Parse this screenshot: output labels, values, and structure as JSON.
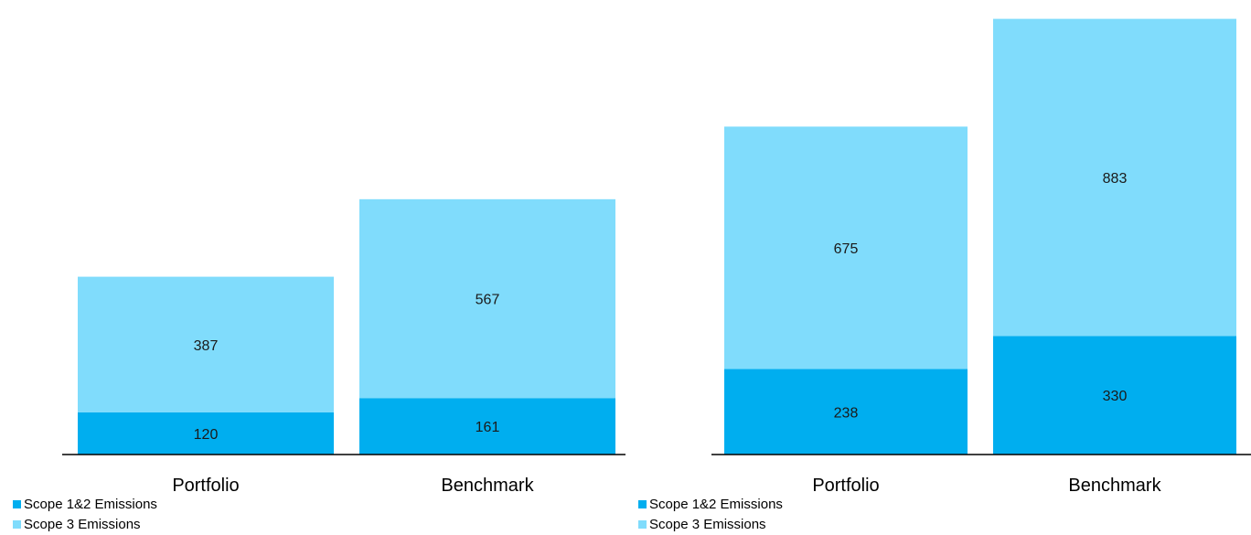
{
  "colors": {
    "scope12": "#00aeef",
    "scope3": "#80dcfc",
    "axis": "#000000"
  },
  "chart_data": [
    {
      "type": "bar",
      "stacked": true,
      "categories": [
        "Portfolio",
        "Benchmark"
      ],
      "series": [
        {
          "name": "Scope 1&2 Emissions",
          "values": [
            120,
            161
          ]
        },
        {
          "name": "Scope 3 Emissions",
          "values": [
            387,
            567
          ]
        }
      ],
      "ylim": [
        0,
        1270
      ],
      "grid": false,
      "legend": "bottom-left",
      "legend_items": [
        "Scope 1&2 Emissions",
        "Scope 3 Emissions"
      ]
    },
    {
      "type": "bar",
      "stacked": true,
      "categories": [
        "Portfolio",
        "Benchmark"
      ],
      "series": [
        {
          "name": "Scope 1&2 Emissions",
          "values": [
            238,
            330
          ]
        },
        {
          "name": "Scope 3 Emissions",
          "values": [
            675,
            883
          ]
        }
      ],
      "ylim": [
        0,
        1240
      ],
      "grid": false,
      "legend": "bottom-left",
      "legend_items": [
        "Scope 1&2 Emissions",
        "Scope 3 Emissions"
      ]
    }
  ]
}
